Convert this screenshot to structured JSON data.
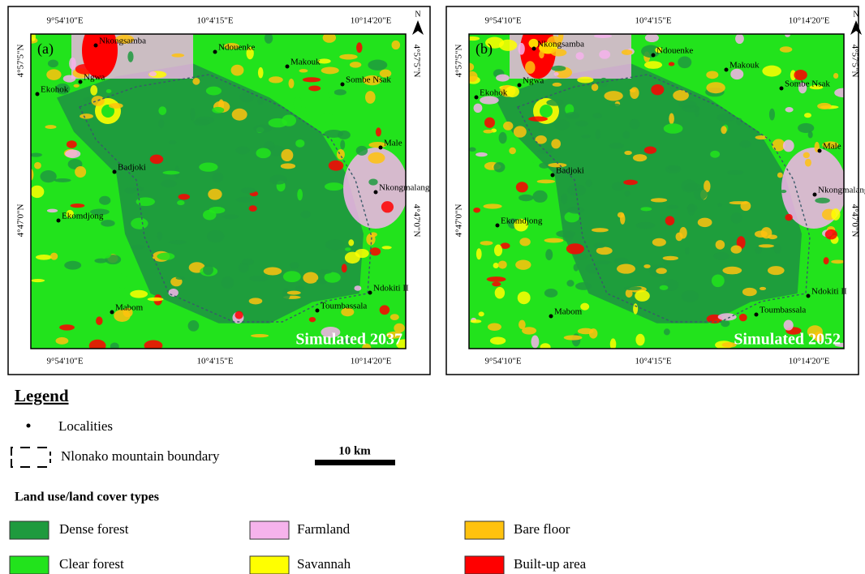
{
  "panels": [
    {
      "label": "(a)",
      "caption": "Simulated 2037",
      "north": "N",
      "lon_labels": [
        "9°54'10\"E",
        "10°4'15\"E",
        "10°14'20\"E"
      ],
      "lat_labels": [
        "4°57'5\"N",
        "4°47'0\"N"
      ],
      "localities": [
        "Nkongsamba",
        "Ngwa",
        "Ekohok",
        "Ndouenke",
        "Makouk",
        "Sombe Nsak",
        "Male",
        "Badjoki",
        "Nkongmalang",
        "Ekomdjong",
        "Ndokiti II",
        "Toumbassala",
        "Mabom"
      ]
    },
    {
      "label": "(b)",
      "caption": "Simulated 2052",
      "north": "N",
      "lon_labels": [
        "9°54'10\"E",
        "10°4'15\"E",
        "10°14'20\"E"
      ],
      "lat_labels": [
        "4°57'5\"N",
        "4°47'0\"N"
      ],
      "localities": [
        "Nkongsamba",
        "Ngwa",
        "Ekohok",
        "Ndouenke",
        "Makouk",
        "Sombe Nsak",
        "Male",
        "Badjoki",
        "Nkongmalang",
        "Ekomdjong",
        "Ndokiti II",
        "Toumbassala",
        "Mabom"
      ]
    }
  ],
  "legend": {
    "title": "Legend",
    "localities": "Localities",
    "boundary": "Nlonako mountain boundary",
    "scale": "10 km",
    "classes_title": "Land use/land cover types",
    "classes": [
      {
        "name": "Dense forest",
        "color": "#1f9a3e"
      },
      {
        "name": "Farmland",
        "color": "#f6b3ec"
      },
      {
        "name": "Bare floor",
        "color": "#ffc20e"
      },
      {
        "name": "Clear forest",
        "color": "#22e31c"
      },
      {
        "name": "Savannah",
        "color": "#ffff00"
      },
      {
        "name": "Built-up area",
        "color": "#ff0000"
      }
    ]
  }
}
